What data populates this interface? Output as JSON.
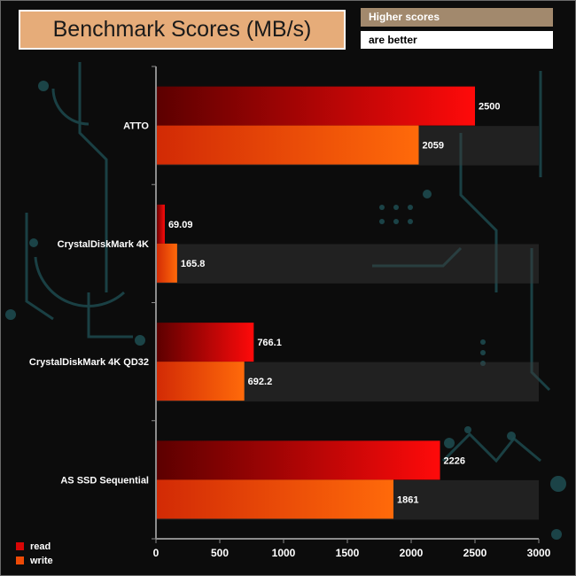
{
  "header": {
    "title": "Benchmark Scores (MB/s)",
    "note_line1": "Higher scores",
    "note_line2": "are better"
  },
  "colors": {
    "read": "#d80606",
    "write": "#ee4a06",
    "title_bg": "#e6ac79",
    "note_bg": "#a2896d"
  },
  "chart_data": {
    "type": "bar",
    "orientation": "horizontal",
    "title": "Benchmark Scores (MB/s)",
    "categories": [
      "ATTO",
      "CrystalDiskMark 4K",
      "CrystalDiskMark 4K QD32",
      "AS SSD Sequential"
    ],
    "series": [
      {
        "name": "read",
        "values": [
          2500,
          69.09,
          766.1,
          2226
        ]
      },
      {
        "name": "write",
        "values": [
          2059,
          165.8,
          692.2,
          1861
        ]
      }
    ],
    "value_labels": [
      [
        "2500",
        "69.09",
        "766.1",
        "2226"
      ],
      [
        "2059",
        "165.8",
        "692.2",
        "1861"
      ]
    ],
    "xlim": [
      0,
      3000
    ],
    "xticks": [
      0,
      500,
      1000,
      1500,
      2000,
      2500,
      3000
    ],
    "legend_position": "bottom-left",
    "grid": false
  }
}
